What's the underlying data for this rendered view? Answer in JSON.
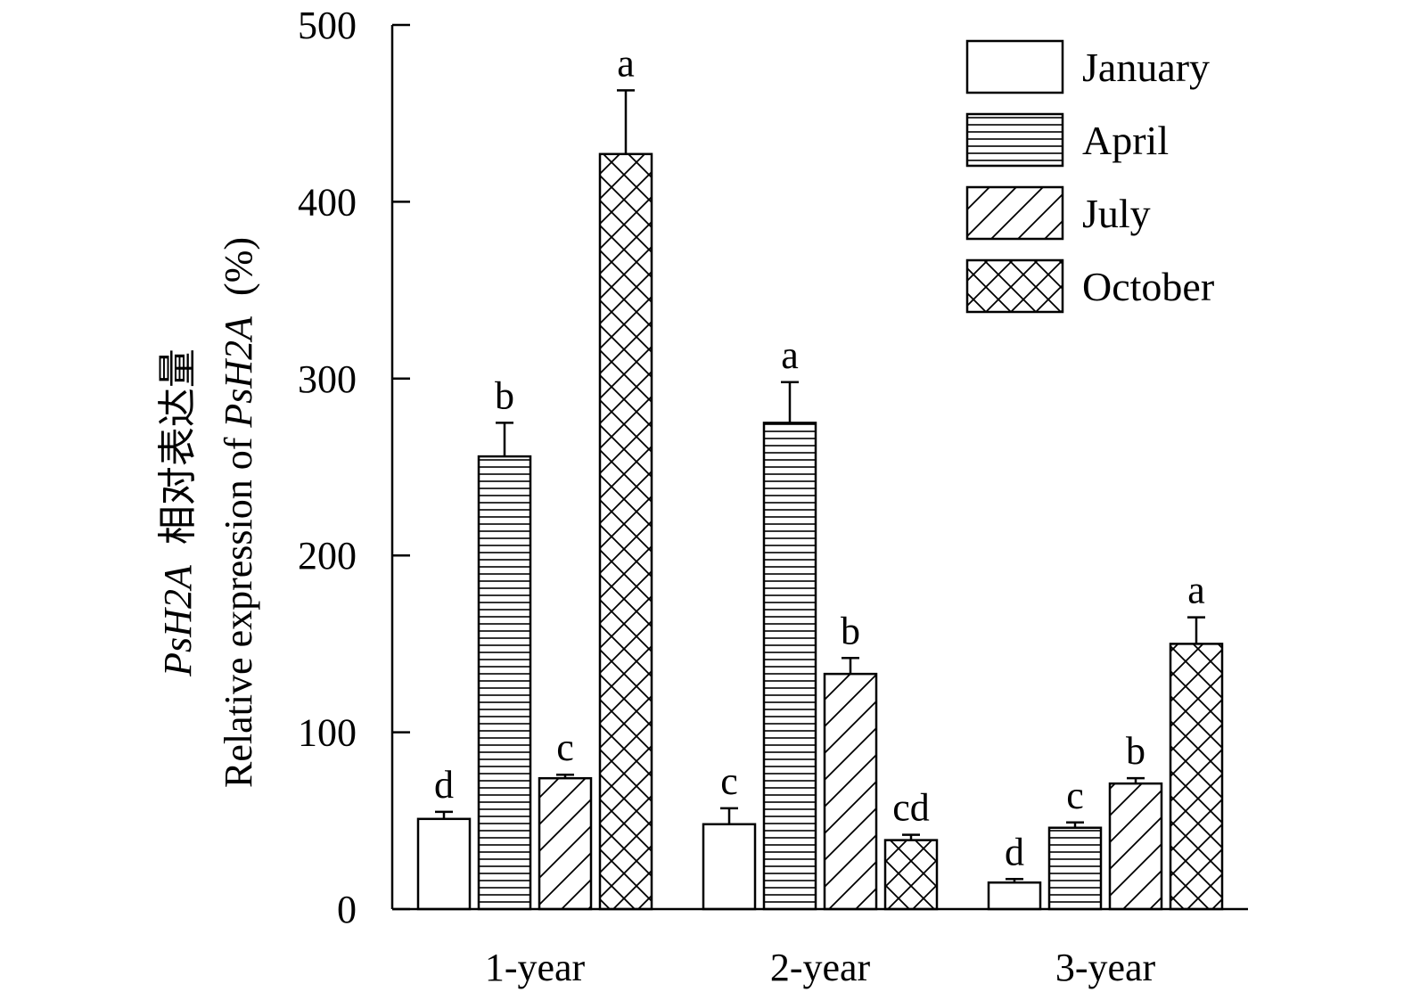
{
  "chart_data": {
    "type": "bar",
    "title": "",
    "ylabel_line1_italic": "PsH2A",
    "ylabel_line1_cn": "相对表达量",
    "ylabel_line2_prefix": "Relative expression of ",
    "ylabel_line2_italic": "PsH2A",
    "ylabel_line2_suffix": "(%)",
    "xlabel": "",
    "ylim": [
      0,
      500
    ],
    "yticks": [
      0,
      100,
      200,
      300,
      400,
      500
    ],
    "categories": [
      "1-year",
      "2-year",
      "3-year"
    ],
    "series": [
      {
        "name": "January",
        "pattern": "blank",
        "values": [
          51,
          48,
          15
        ],
        "errors": [
          4,
          9,
          2
        ],
        "letters": [
          "d",
          "c",
          "d"
        ]
      },
      {
        "name": "April",
        "pattern": "horizontal",
        "values": [
          256,
          275,
          46
        ],
        "errors": [
          19,
          23,
          3
        ],
        "letters": [
          "b",
          "a",
          "c"
        ]
      },
      {
        "name": "July",
        "pattern": "diagonal",
        "values": [
          74,
          133,
          71
        ],
        "errors": [
          2,
          9,
          3
        ],
        "letters": [
          "c",
          "b",
          "b"
        ]
      },
      {
        "name": "October",
        "pattern": "crosshatch",
        "values": [
          427,
          39,
          150
        ],
        "errors": [
          36,
          3,
          15
        ],
        "letters": [
          "a",
          "cd",
          "a"
        ]
      }
    ]
  }
}
